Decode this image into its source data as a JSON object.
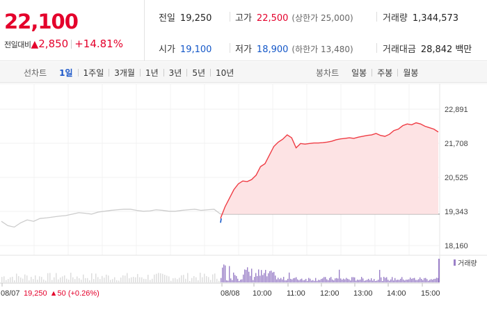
{
  "summary": {
    "price": "22,100",
    "change_label": "전일대비",
    "change_arrow": "▲",
    "change_value": "2,850",
    "change_rate": "+14.81%",
    "prev_close": {
      "label": "전일",
      "value": "19,250"
    },
    "high": {
      "label": "고가",
      "value": "22,500",
      "sub": "(상한가 25,000)"
    },
    "volume": {
      "label": "거래량",
      "value": "1,344,573"
    },
    "open": {
      "label": "시가",
      "value": "19,100"
    },
    "low": {
      "label": "저가",
      "value": "18,900",
      "sub": "(하한가 13,480)"
    },
    "trade_amount": {
      "label": "거래대금",
      "value": "28,842",
      "unit": "백만"
    }
  },
  "tabs": {
    "line_title": "선차트",
    "line_tabs": [
      "1일",
      "1주일",
      "3개월",
      "1년",
      "3년",
      "5년",
      "10년"
    ],
    "line_active": "1일",
    "candle_title": "봉차트",
    "candle_tabs": [
      "일봉",
      "주봉",
      "월봉"
    ]
  },
  "colors": {
    "up": "#e4002b",
    "down": "#1457c8",
    "prev_day_line": "#cccccc",
    "today_line": "#ef3b43",
    "area_fill": "#fde3e4",
    "volume_bar": "#9b80c8",
    "volume_prev": "#dddddd"
  },
  "chart_data": {
    "type": "line",
    "y_ticks": [
      "22,891",
      "21,708",
      "20,525",
      "19,343",
      "18,160"
    ],
    "y_tick_values": [
      22891,
      21708,
      20525,
      19343,
      18160
    ],
    "ylim": [
      18160,
      22891
    ],
    "reference_price": 19250,
    "x_ticks": [
      "08/07",
      "08/08",
      "10:00",
      "11:00",
      "12:00",
      "13:00",
      "14:00",
      "15:00"
    ],
    "prev_day_label": "08/07",
    "prev_day_close_text": "19,250",
    "prev_day_change_arrow": "▲",
    "prev_day_change_text": "50 (+0.26%)",
    "volume_legend": "거래량",
    "series": [
      {
        "values_prev_day": [
          19000,
          18850,
          18800,
          18950,
          19050,
          19000,
          19100,
          19120,
          19150,
          19180,
          19200,
          19250,
          19300,
          19280,
          19250,
          19320,
          19350,
          19380,
          19400,
          19420,
          19420,
          19380,
          19350,
          19360,
          19400,
          19380,
          19350,
          19350,
          19380,
          19400,
          19420,
          19380,
          19400,
          19420,
          19250
        ],
        "values_today": [
          19100,
          19500,
          19800,
          20100,
          20300,
          20400,
          20380,
          20450,
          20600,
          20900,
          21000,
          21300,
          21600,
          21750,
          21850,
          22000,
          21900,
          21550,
          21700,
          21680,
          21700,
          21720,
          21720,
          21730,
          21750,
          21780,
          21830,
          21860,
          21880,
          21900,
          21880,
          21920,
          21950,
          21980,
          22000,
          22050,
          21980,
          21950,
          22020,
          22150,
          22200,
          22320,
          22380,
          22350,
          22420,
          22380,
          22300,
          22250,
          22200,
          22100
        ]
      }
    ]
  }
}
